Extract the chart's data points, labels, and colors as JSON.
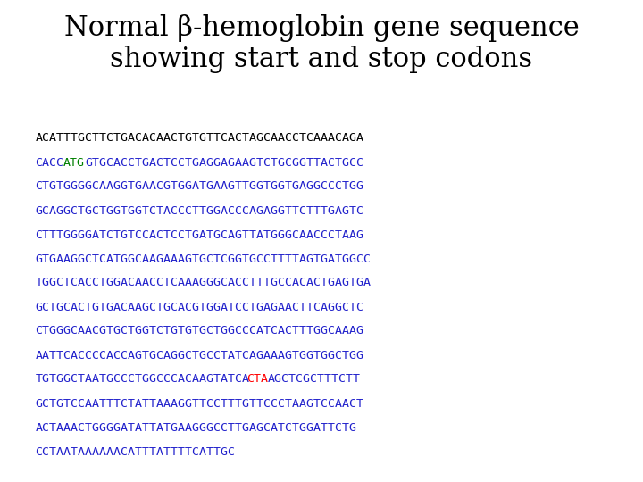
{
  "title_line1": "Normal β-hemoglobin gene sequence",
  "title_line2": "showing start and stop codons",
  "title_fontsize": 22,
  "title_color": "#000000",
  "seq_fontsize": 9.5,
  "seq_font": "monospace",
  "default_color_line1": "#000000",
  "default_color": "#2222cc",
  "start_color": "#008000",
  "stop_color": "#ff0000",
  "lines": [
    {
      "text": "ACATTTGCTTCTGACACAACTGTGTTCACTAGCAACCTCAAACAGA",
      "special": []
    },
    {
      "text": "CACCATGGTGCACCTGACTCCTGAGGAGAAGTCTGCGGTTACTGCC",
      "special": [
        {
          "start": 4,
          "end": 7,
          "color": "#008000"
        }
      ]
    },
    {
      "text": "CTGTGGGGCAAGGTGAACGTGGATGAAGTTGGTGGTGAGGCCCTGG",
      "special": []
    },
    {
      "text": "GCAGGCTGCTGGTGGTCTACCCTTGGACCCAGAGGTTCTTTGAGTC",
      "special": []
    },
    {
      "text": "CTTTGGGGATCTGTCCACTCCTGATGCAGTTATGGGCAACCCTAAG",
      "special": []
    },
    {
      "text": "GTGAAGGCTCATGGCAAGAAAGTGCTCGGTGCCTTTTAGTGATGGCC",
      "special": []
    },
    {
      "text": "TGGCTCACCTGGACAACCTCAAAGGGCACCTTTGCCACACTGAGTGA",
      "special": []
    },
    {
      "text": "GCTGCACTGTGACAAGCTGCACGTGGATCCTGAGAACTTCAGGCTC",
      "special": []
    },
    {
      "text": "CTGGGCAACGTGCTGGTCTGTGTGCTGGCCCATCACTTTGGCAAAG",
      "special": []
    },
    {
      "text": "AATTCACCCCACCAGTGCAGGCTGCCTATCAGAAAGTGGTGGCTGG",
      "special": []
    },
    {
      "text": "TGTGGCTAATGCCCTGGCCCACAAGTATCACTAAGCTCGCTTTCTT",
      "special": [
        {
          "start": 30,
          "end": 33,
          "color": "#ff0000"
        }
      ]
    },
    {
      "text": "GCTGTCCAATTTCTATTAAAGGTTCCTTTGTTCCCTAAGTCCAACT",
      "special": []
    },
    {
      "text": "ACTAAACTGGGGATATTATGAAGGGCCTTGAGCATCTGGATTCTG",
      "special": []
    },
    {
      "text": "CCTAATAAAAAACATTTATTTTCATTGC",
      "special": []
    }
  ],
  "background_color": "#ffffff",
  "figsize": [
    7.2,
    5.4
  ],
  "dpi": 100
}
